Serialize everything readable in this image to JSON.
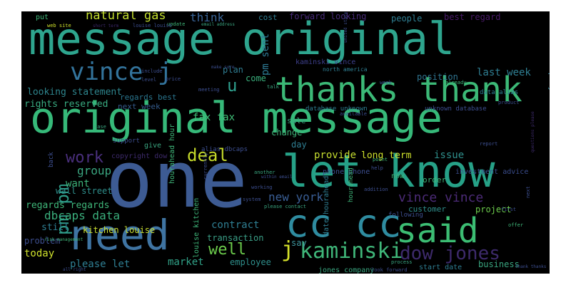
{
  "wordcloud": {
    "words": [
      {
        "text": "message original",
        "color": "#2ea58e"
      },
      {
        "text": "original message",
        "color": "#36b979"
      },
      {
        "text": "one",
        "color": "#3d5b93"
      },
      {
        "text": "let know",
        "color": "#26a187"
      },
      {
        "text": "thanks thank",
        "color": "#3cb977"
      },
      {
        "text": "need",
        "color": "#3f74a2"
      },
      {
        "text": "cc cc",
        "color": "#2f8ca0"
      },
      {
        "text": "said",
        "color": "#3cbd73"
      },
      {
        "text": "vince j",
        "color": "#33749c"
      },
      {
        "text": "kaminski",
        "color": "#3fb679"
      },
      {
        "text": "dow jones",
        "color": "#3d2a6b"
      },
      {
        "text": "deal",
        "color": "#c4d92a"
      },
      {
        "text": "vince vince",
        "color": "#4c2b78"
      },
      {
        "text": "pm pm",
        "color": "#2f9e8a"
      },
      {
        "text": "work",
        "color": "#4a2f7d"
      },
      {
        "text": "natural gas",
        "color": "#c4df2f"
      },
      {
        "text": "well",
        "color": "#6ccc4c"
      },
      {
        "text": "new york",
        "color": "#3a5f96"
      },
      {
        "text": "j",
        "color": "#d5e12a"
      },
      {
        "text": "u",
        "color": "#2e9f8d"
      },
      {
        "text": "think",
        "color": "#3a6598"
      },
      {
        "text": "pm sent",
        "color": "#2d7b95"
      },
      {
        "text": "people",
        "color": "#2f7f93"
      },
      {
        "text": "best regard",
        "color": "#4a1a6a"
      },
      {
        "text": "forward looking",
        "color": "#472a77"
      },
      {
        "text": "last week",
        "color": "#2f7f93"
      },
      {
        "text": "position",
        "color": "#2f748f"
      },
      {
        "text": "looking statement",
        "color": "#2e858d"
      },
      {
        "text": "rights reserved",
        "color": "#39ab81"
      },
      {
        "text": "fax fax",
        "color": "#3fbf77"
      },
      {
        "text": "regards best",
        "color": "#2a768f"
      },
      {
        "text": "next week",
        "color": "#355b8c"
      },
      {
        "text": "plan",
        "color": "#2f7d92"
      },
      {
        "text": "come",
        "color": "#3ab07d"
      },
      {
        "text": "want",
        "color": "#3db37a"
      },
      {
        "text": "group",
        "color": "#3aa680"
      },
      {
        "text": "regards regards",
        "color": "#3fb77a"
      },
      {
        "text": "wall street",
        "color": "#2f8f8c"
      },
      {
        "text": "dbcaps data",
        "color": "#3bb07d"
      },
      {
        "text": "kitchen louise",
        "color": "#c9dd30"
      },
      {
        "text": "still",
        "color": "#2f7f93"
      },
      {
        "text": "problem",
        "color": "#3d4f90"
      },
      {
        "text": "today",
        "color": "#cfe12c"
      },
      {
        "text": "please let",
        "color": "#2f7f93"
      },
      {
        "text": "market",
        "color": "#31a288"
      },
      {
        "text": "contract",
        "color": "#2f7f93"
      },
      {
        "text": "transaction",
        "color": "#3a9e86"
      },
      {
        "text": "employee",
        "color": "#2f8f8c"
      },
      {
        "text": "say",
        "color": "#3f97a0"
      },
      {
        "text": "provide",
        "color": "#c6dd30"
      },
      {
        "text": "long term",
        "color": "#cfe12c"
      },
      {
        "text": "issue",
        "color": "#2f8f8c"
      },
      {
        "text": "investment advice",
        "color": "#3a4d8c"
      },
      {
        "text": "sale",
        "color": "#3aa680"
      },
      {
        "text": "change",
        "color": "#3fb77a"
      },
      {
        "text": "day",
        "color": "#2f7f93"
      },
      {
        "text": "kaminski vince",
        "color": "#3d3f8a"
      },
      {
        "text": "company inc",
        "color": "#2f7f93"
      },
      {
        "text": "copyright dow",
        "color": "#3d2a6b"
      },
      {
        "text": "alias dbcaps",
        "color": "#3d4f90"
      },
      {
        "text": "data alias",
        "color": "#2f7f93"
      },
      {
        "text": "database unknown",
        "color": "#2f7f93"
      },
      {
        "text": "unknown database",
        "color": "#3d4f90"
      },
      {
        "text": "phone phone",
        "color": "#3d4f90"
      },
      {
        "text": "order",
        "color": "#3fb77a"
      },
      {
        "text": "customer",
        "color": "#2f8f8c"
      },
      {
        "text": "project",
        "color": "#6ccc4c"
      },
      {
        "text": "business",
        "color": "#3aa680"
      },
      {
        "text": "start date",
        "color": "#2f7f93"
      },
      {
        "text": "jones company",
        "color": "#3aa680"
      },
      {
        "text": "date hourahead",
        "color": "#2f7f93"
      },
      {
        "text": "hourahead hour",
        "color": "#3fb77a"
      },
      {
        "text": "louise kitchen",
        "color": "#3fb77a"
      },
      {
        "text": "following",
        "color": "#3d4f90"
      },
      {
        "text": "hourahead",
        "color": "#3fb77a"
      },
      {
        "text": "support",
        "color": "#3d4f90"
      },
      {
        "text": "back",
        "color": "#3d4f90"
      },
      {
        "text": "cost",
        "color": "#2f7f93"
      },
      {
        "text": "put",
        "color": "#3fb77a"
      },
      {
        "text": "give",
        "color": "#3aa680"
      },
      {
        "text": "now",
        "color": "#3fb77a"
      },
      {
        "text": "look forward",
        "color": "#3d4f90"
      },
      {
        "text": "web site",
        "color": "#cfe12c"
      },
      {
        "text": "short term",
        "color": "#3d2a6b"
      },
      {
        "text": "north america",
        "color": "#2f7f93"
      },
      {
        "text": "please contact",
        "color": "#3aa680"
      },
      {
        "text": "system",
        "color": "#3d4f90"
      },
      {
        "text": "within email",
        "color": "#3d4f90"
      },
      {
        "text": "questions please",
        "color": "#3d2a6b"
      },
      {
        "text": "united state",
        "color": "#3d4f90"
      },
      {
        "text": "all right",
        "color": "#3d4f90"
      },
      {
        "text": "risk management",
        "color": "#3fb77a"
      },
      {
        "text": "email address",
        "color": "#3aa680"
      },
      {
        "text": "make sure",
        "color": "#3d4f90"
      },
      {
        "text": "help",
        "color": "#3d4f90"
      },
      {
        "text": "thank thanks",
        "color": "#3d4f90"
      },
      {
        "text": "update",
        "color": "#3fb77a"
      },
      {
        "text": "include",
        "color": "#3d4f90"
      },
      {
        "text": "level",
        "color": "#3d4f90"
      },
      {
        "text": "price",
        "color": "#3d4f90"
      },
      {
        "text": "product",
        "color": "#3d4f90"
      },
      {
        "text": "meeting",
        "color": "#3d4f90"
      },
      {
        "text": "process",
        "color": "#3aa680"
      },
      {
        "text": "addition",
        "color": "#3d4f90"
      },
      {
        "text": "working",
        "color": "#3d4f90"
      },
      {
        "text": "point",
        "color": "#3fb77a"
      },
      {
        "text": "another",
        "color": "#3aa680"
      },
      {
        "text": "currently",
        "color": "#3d4f90"
      },
      {
        "text": "available",
        "color": "#3d4f90"
      },
      {
        "text": "louise louise",
        "color": "#3d4f90"
      },
      {
        "text": "already",
        "color": "#3fb77a"
      },
      {
        "text": "first",
        "color": "#3d4f90"
      },
      {
        "text": "talk",
        "color": "#3aa680"
      },
      {
        "text": "week",
        "color": "#3d4f90"
      },
      {
        "text": "case",
        "color": "#3aa680"
      },
      {
        "text": "next",
        "color": "#3d4f90"
      },
      {
        "text": "offer",
        "color": "#3fb77a"
      },
      {
        "text": "report",
        "color": "#3d4f90"
      }
    ]
  }
}
